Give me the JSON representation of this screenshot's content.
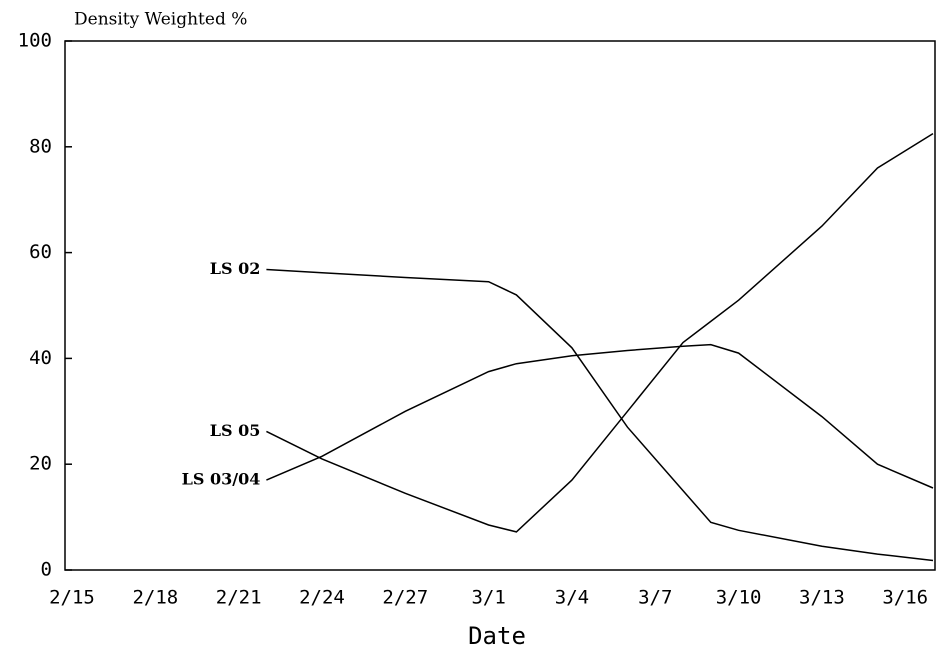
{
  "chart_data": {
    "type": "line",
    "title": "Density Weighted %",
    "x_label": "Date",
    "x": [
      "2/22",
      "2/24",
      "2/27",
      "3/1",
      "3/2",
      "3/4",
      "3/6",
      "3/8",
      "3/9",
      "3/10",
      "3/13",
      "3/15",
      "3/17"
    ],
    "series": [
      {
        "name": "LS 02",
        "color": "#000000",
        "values": [
          56.8,
          56.2,
          55.3,
          54.5,
          52,
          42,
          27,
          15,
          9,
          7.5,
          4.5,
          3,
          1.8
        ]
      },
      {
        "name": "LS 05",
        "color": "#000000",
        "values": [
          26.2,
          21,
          14.5,
          8.5,
          7.2,
          17,
          30,
          43,
          47,
          51,
          65,
          76,
          82.5
        ]
      },
      {
        "name": "LS 03/04",
        "color": "#000000",
        "values": [
          17,
          21.5,
          30,
          37.5,
          39,
          40.5,
          41.5,
          42.3,
          42.6,
          41,
          29,
          20,
          15.5
        ]
      }
    ],
    "xlim": [
      "2/15",
      "3/17"
    ],
    "xticks": [
      "2/15",
      "2/18",
      "2/21",
      "2/24",
      "2/27",
      "3/1",
      "3/4",
      "3/7",
      "3/10",
      "3/13",
      "3/16"
    ],
    "ylim": [
      0,
      100
    ],
    "yticks": [
      0,
      20,
      40,
      60,
      80,
      100
    ],
    "grid": false
  }
}
